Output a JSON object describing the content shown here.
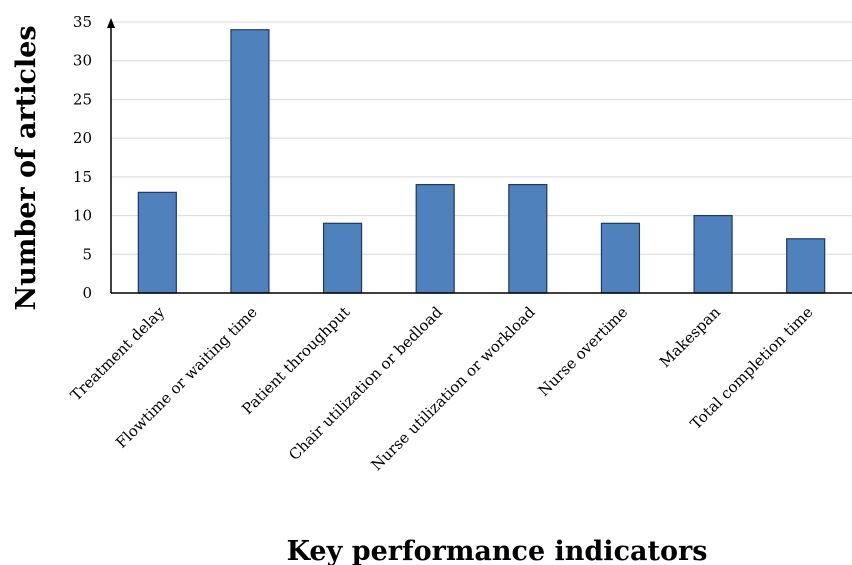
{
  "chart_data": {
    "type": "bar",
    "title": "",
    "xlabel": "Key performance indicators",
    "ylabel": "Number of articles",
    "categories": [
      "Treatment delay",
      "Flowtime or waiting time",
      "Patient throughput",
      "Chair utilization or bedload",
      "Nurse utilization or workload",
      "Nurse overtime",
      "Makespan",
      "Total completion time"
    ],
    "values": [
      13,
      34,
      9,
      14,
      14,
      9,
      10,
      7
    ],
    "ylim": [
      0,
      35
    ],
    "yticks": [
      0,
      5,
      10,
      15,
      20,
      25,
      30,
      35
    ],
    "grid": true,
    "legend": "none",
    "bar_color": "#4f81bd",
    "bar_edge_color": "#1f3864",
    "grid_color": "#d9d9d9"
  }
}
